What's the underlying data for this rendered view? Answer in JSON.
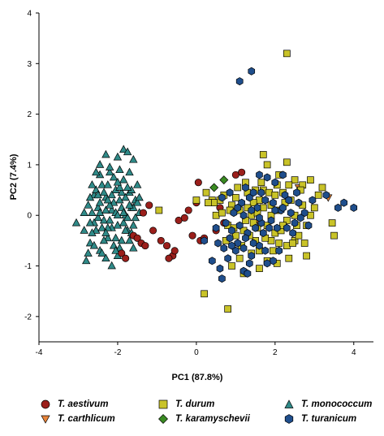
{
  "chart_data": {
    "type": "scatter",
    "title": "",
    "xlabel": "PC1 (87.8%)",
    "ylabel": "PC2 (7.4%)",
    "xlim": [
      -4,
      4.5
    ],
    "ylim": [
      -2.5,
      4
    ],
    "xticks": [
      -4,
      -2,
      0,
      2,
      4
    ],
    "yticks": [
      -2,
      -1,
      0,
      1,
      2,
      3,
      4
    ],
    "grid": false,
    "legend_position": "bottom",
    "series": [
      {
        "name": "T. aestivum",
        "marker": "circle",
        "color": "#9b1f1b",
        "points": [
          [
            -1.9,
            -0.75
          ],
          [
            -1.8,
            -0.85
          ],
          [
            -1.6,
            -0.4
          ],
          [
            -1.5,
            -0.45
          ],
          [
            -1.4,
            -0.55
          ],
          [
            -1.3,
            -0.6
          ],
          [
            -1.35,
            0.05
          ],
          [
            -1.2,
            0.2
          ],
          [
            -1.1,
            -0.3
          ],
          [
            -0.9,
            -0.5
          ],
          [
            -0.75,
            -0.6
          ],
          [
            -0.6,
            -0.8
          ],
          [
            -0.55,
            -0.7
          ],
          [
            -0.45,
            -0.1
          ],
          [
            -0.3,
            -0.05
          ],
          [
            -0.2,
            0.1
          ],
          [
            -0.1,
            -0.4
          ],
          [
            0.0,
            0.25
          ],
          [
            0.05,
            0.65
          ],
          [
            0.1,
            -0.5
          ],
          [
            0.2,
            -0.45
          ],
          [
            0.5,
            -0.3
          ],
          [
            0.6,
            0.15
          ],
          [
            0.7,
            -0.15
          ],
          [
            1.0,
            0.8
          ],
          [
            1.15,
            0.85
          ],
          [
            -0.7,
            -0.85
          ]
        ]
      },
      {
        "name": "T. carthlicum",
        "marker": "triangle-down",
        "color": "#e8843a",
        "points": [
          [
            2.6,
            0.55
          ],
          [
            3.35,
            0.35
          ],
          [
            1.6,
            -0.15
          ]
        ]
      },
      {
        "name": "T. durum",
        "marker": "square",
        "color": "#c9c328",
        "points": [
          [
            2.3,
            3.2
          ],
          [
            1.7,
            1.2
          ],
          [
            1.8,
            1.0
          ],
          [
            2.1,
            0.8
          ],
          [
            2.3,
            1.05
          ],
          [
            2.5,
            0.7
          ],
          [
            2.7,
            0.6
          ],
          [
            2.9,
            0.7
          ],
          [
            3.1,
            0.4
          ],
          [
            3.2,
            0.55
          ],
          [
            3.45,
            -0.15
          ],
          [
            3.5,
            -0.4
          ],
          [
            2.8,
            -0.8
          ],
          [
            2.5,
            -0.5
          ],
          [
            2.3,
            -0.6
          ],
          [
            2.1,
            -0.55
          ],
          [
            1.9,
            -0.5
          ],
          [
            1.8,
            -0.9
          ],
          [
            1.6,
            -1.05
          ],
          [
            1.4,
            -0.75
          ],
          [
            1.2,
            -1.15
          ],
          [
            0.9,
            -1.0
          ],
          [
            0.8,
            -1.85
          ],
          [
            0.2,
            -1.55
          ],
          [
            -0.95,
            0.1
          ],
          [
            0.0,
            0.3
          ],
          [
            0.25,
            0.45
          ],
          [
            0.4,
            0.3
          ],
          [
            0.5,
            0.0
          ],
          [
            0.6,
            0.3
          ],
          [
            0.7,
            0.4
          ],
          [
            0.8,
            -0.2
          ],
          [
            0.9,
            0.2
          ],
          [
            1.0,
            -0.4
          ],
          [
            1.1,
            0.1
          ],
          [
            1.2,
            -0.3
          ],
          [
            1.3,
            0.45
          ],
          [
            1.4,
            0.0
          ],
          [
            1.5,
            -0.5
          ],
          [
            1.6,
            0.3
          ],
          [
            1.7,
            0.5
          ],
          [
            1.8,
            -0.2
          ],
          [
            1.9,
            0.2
          ],
          [
            2.0,
            -0.35
          ],
          [
            2.1,
            0.1
          ],
          [
            2.2,
            0.45
          ],
          [
            2.3,
            -0.1
          ],
          [
            2.4,
            0.3
          ],
          [
            2.5,
            0.0
          ],
          [
            2.6,
            -0.4
          ],
          [
            2.7,
            0.2
          ],
          [
            2.8,
            -0.2
          ],
          [
            2.9,
            0.0
          ],
          [
            3.0,
            0.15
          ],
          [
            1.55,
            -0.25
          ],
          [
            1.75,
            -0.45
          ],
          [
            1.95,
            -0.7
          ],
          [
            2.15,
            -0.3
          ],
          [
            2.35,
            -0.85
          ],
          [
            2.55,
            -0.2
          ],
          [
            1.05,
            0.55
          ],
          [
            1.25,
            0.65
          ],
          [
            1.45,
            0.25
          ],
          [
            1.65,
            0.65
          ],
          [
            1.85,
            0.45
          ],
          [
            2.05,
            0.6
          ],
          [
            2.25,
            0.25
          ],
          [
            2.45,
            -0.55
          ],
          [
            0.85,
            0.1
          ],
          [
            1.15,
            -0.6
          ],
          [
            1.35,
            -0.4
          ],
          [
            1.5,
            0.5
          ],
          [
            2.65,
            0.5
          ],
          [
            2.75,
            -0.55
          ],
          [
            1.1,
            -0.85
          ],
          [
            0.95,
            -0.25
          ],
          [
            1.6,
            -0.7
          ],
          [
            2.05,
            -0.95
          ],
          [
            2.35,
            0.6
          ],
          [
            1.7,
            0.15
          ],
          [
            0.75,
            -0.5
          ],
          [
            1.3,
            0.15
          ],
          [
            1.9,
            0.0
          ],
          [
            2.2,
            -0.2
          ],
          [
            1.45,
            -0.15
          ],
          [
            0.65,
            0.05
          ],
          [
            1.0,
            0.35
          ],
          [
            1.55,
            0.05
          ],
          [
            2.0,
            0.4
          ],
          [
            1.25,
            -0.1
          ],
          [
            0.45,
            0.25
          ],
          [
            0.3,
            0.25
          ]
        ]
      },
      {
        "name": "T. karamyschevii",
        "marker": "diamond",
        "color": "#3a8b22",
        "points": [
          [
            0.45,
            0.55
          ],
          [
            0.7,
            0.7
          ]
        ]
      },
      {
        "name": "T. monococcum",
        "marker": "triangle-up",
        "color": "#2f8a88",
        "points": [
          [
            -3.05,
            -0.15
          ],
          [
            -2.8,
            -0.9
          ],
          [
            -2.7,
            -0.55
          ],
          [
            -2.65,
            0.05
          ],
          [
            -2.6,
            0.4
          ],
          [
            -2.55,
            -0.3
          ],
          [
            -2.5,
            0.15
          ],
          [
            -2.45,
            -0.7
          ],
          [
            -2.4,
            0.6
          ],
          [
            -2.35,
            -0.1
          ],
          [
            -2.3,
            0.35
          ],
          [
            -2.25,
            -0.45
          ],
          [
            -2.2,
            0.85
          ],
          [
            -2.15,
            0.1
          ],
          [
            -2.1,
            -0.6
          ],
          [
            -2.05,
            0.5
          ],
          [
            -2.0,
            -0.2
          ],
          [
            -1.95,
            0.3
          ],
          [
            -1.9,
            -0.5
          ],
          [
            -1.85,
            0.7
          ],
          [
            -1.8,
            0.0
          ],
          [
            -1.75,
            -0.3
          ],
          [
            -1.7,
            0.45
          ],
          [
            -1.65,
            0.15
          ],
          [
            -1.6,
            -0.2
          ],
          [
            -1.55,
            0.3
          ],
          [
            -1.5,
            0.6
          ],
          [
            -1.45,
            0.05
          ],
          [
            -1.85,
            1.3
          ],
          [
            -1.75,
            1.25
          ],
          [
            -2.0,
            1.15
          ],
          [
            -2.3,
            1.2
          ],
          [
            -1.6,
            1.1
          ],
          [
            -2.15,
            -1.0
          ],
          [
            -2.0,
            -0.8
          ],
          [
            -2.75,
            0.2
          ],
          [
            -2.65,
            -0.35
          ],
          [
            -2.55,
            0.5
          ],
          [
            -2.45,
            0.25
          ],
          [
            -2.35,
            -0.5
          ],
          [
            -2.25,
            0.6
          ],
          [
            -2.15,
            -0.25
          ],
          [
            -2.05,
            0.05
          ],
          [
            -1.95,
            -0.65
          ],
          [
            -1.9,
            0.45
          ],
          [
            -1.85,
            -0.15
          ],
          [
            -1.7,
            -0.5
          ],
          [
            -1.65,
            0.5
          ],
          [
            -1.55,
            -0.05
          ],
          [
            -2.5,
            -0.05
          ],
          [
            -2.4,
            -0.25
          ],
          [
            -2.3,
            0.1
          ],
          [
            -2.2,
            -0.1
          ],
          [
            -2.1,
            0.25
          ],
          [
            -2.0,
            0.0
          ],
          [
            -1.9,
            0.15
          ],
          [
            -1.8,
            0.35
          ],
          [
            -1.75,
            -0.05
          ],
          [
            -1.6,
            0.15
          ],
          [
            -2.7,
            0.35
          ],
          [
            -2.6,
            -0.15
          ],
          [
            -2.35,
            0.45
          ],
          [
            -2.25,
            -0.25
          ],
          [
            -2.05,
            -0.45
          ],
          [
            -1.95,
            0.55
          ],
          [
            -1.8,
            -0.3
          ],
          [
            -1.7,
            0.2
          ],
          [
            -1.5,
            0.25
          ],
          [
            -2.45,
            0.8
          ],
          [
            -2.2,
            0.95
          ],
          [
            -1.95,
            0.9
          ],
          [
            -1.7,
            0.85
          ],
          [
            -2.55,
            0.85
          ],
          [
            -2.85,
            -0.3
          ],
          [
            -2.4,
            -0.75
          ],
          [
            -2.6,
            -0.6
          ],
          [
            -2.3,
            -0.85
          ],
          [
            -1.6,
            -0.65
          ],
          [
            -2.5,
            0.4
          ],
          [
            -2.15,
            0.4
          ],
          [
            -1.85,
            0.05
          ],
          [
            -2.65,
            0.6
          ],
          [
            -1.45,
            0.35
          ],
          [
            -2.1,
            0.75
          ],
          [
            -2.45,
            1.0
          ],
          [
            -2.7,
            -0.15
          ],
          [
            -2.2,
            0.2
          ],
          [
            -2.0,
            0.65
          ],
          [
            -1.75,
            0.55
          ],
          [
            -2.3,
            -0.35
          ],
          [
            -2.85,
            0.05
          ],
          [
            -2.75,
            -0.75
          ],
          [
            -2.05,
            -0.7
          ],
          [
            -1.65,
            -0.35
          ],
          [
            -2.45,
            0.05
          ],
          [
            -2.25,
            0.3
          ]
        ]
      },
      {
        "name": "T. turanicum",
        "marker": "hexagon",
        "color": "#1f4e8c",
        "points": [
          [
            1.4,
            2.85
          ],
          [
            1.1,
            2.65
          ],
          [
            3.6,
            0.15
          ],
          [
            4.0,
            0.15
          ],
          [
            3.75,
            0.25
          ],
          [
            3.3,
            0.4
          ],
          [
            2.95,
            0.3
          ],
          [
            2.85,
            -0.2
          ],
          [
            2.6,
            0.25
          ],
          [
            2.4,
            0.05
          ],
          [
            2.25,
            0.4
          ],
          [
            2.0,
            0.65
          ],
          [
            1.8,
            0.75
          ],
          [
            1.6,
            0.8
          ],
          [
            2.2,
            0.8
          ],
          [
            2.1,
            -0.7
          ],
          [
            1.95,
            -0.9
          ],
          [
            1.8,
            -0.95
          ],
          [
            1.6,
            -0.6
          ],
          [
            1.4,
            -0.8
          ],
          [
            1.2,
            -0.65
          ],
          [
            1.0,
            -0.7
          ],
          [
            0.8,
            -0.85
          ],
          [
            0.6,
            -1.05
          ],
          [
            0.4,
            -0.9
          ],
          [
            0.2,
            -0.5
          ],
          [
            0.55,
            -0.55
          ],
          [
            1.2,
            -1.1
          ],
          [
            1.3,
            -1.15
          ],
          [
            0.9,
            -0.3
          ],
          [
            1.1,
            -0.2
          ],
          [
            1.3,
            -0.35
          ],
          [
            1.5,
            -0.25
          ],
          [
            1.7,
            -0.35
          ],
          [
            1.9,
            -0.1
          ],
          [
            2.3,
            -0.25
          ],
          [
            2.5,
            -0.15
          ],
          [
            2.75,
            0.05
          ],
          [
            0.75,
            -0.15
          ],
          [
            0.95,
            0.05
          ],
          [
            1.15,
            0.25
          ],
          [
            1.35,
            0.35
          ],
          [
            1.55,
            0.15
          ],
          [
            1.75,
            0.3
          ],
          [
            1.95,
            0.25
          ],
          [
            2.15,
            0.1
          ],
          [
            2.35,
            0.3
          ],
          [
            2.55,
            0.45
          ],
          [
            0.65,
            0.35
          ],
          [
            0.85,
            0.45
          ],
          [
            1.05,
            0.15
          ],
          [
            1.25,
            0.55
          ],
          [
            1.45,
            0.45
          ],
          [
            1.65,
            0.45
          ],
          [
            1.85,
            -0.25
          ],
          [
            2.05,
            -0.25
          ],
          [
            0.5,
            -0.25
          ],
          [
            0.7,
            -0.65
          ],
          [
            0.85,
            -0.45
          ],
          [
            1.05,
            -0.55
          ],
          [
            1.25,
            -0.45
          ],
          [
            1.45,
            -0.55
          ],
          [
            1.65,
            -0.15
          ],
          [
            2.45,
            -0.35
          ],
          [
            2.65,
            -0.05
          ],
          [
            1.2,
            0.0
          ],
          [
            1.4,
            0.1
          ],
          [
            1.6,
            -0.05
          ],
          [
            0.9,
            -0.6
          ],
          [
            1.75,
            -0.7
          ],
          [
            0.65,
            -1.25
          ],
          [
            1.35,
            -0.95
          ],
          [
            2.0,
            0.1
          ],
          [
            2.2,
            0.15
          ]
        ]
      }
    ]
  }
}
